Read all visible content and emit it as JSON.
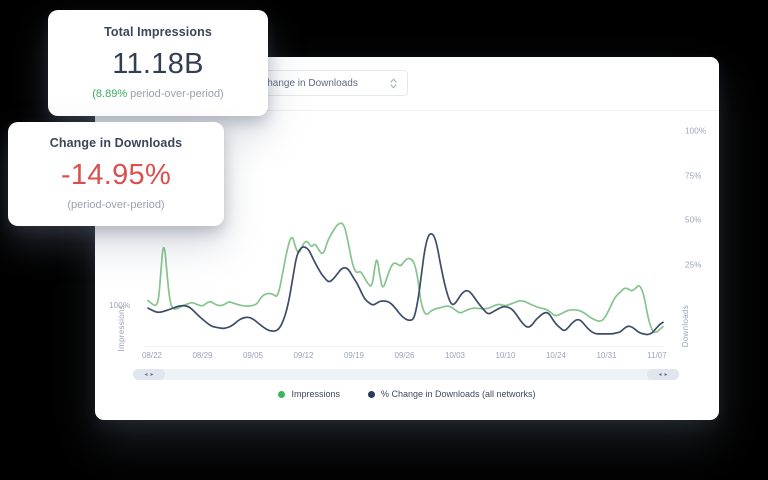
{
  "cards": {
    "impressions": {
      "title": "Total Impressions",
      "value": "11.18B",
      "delta": "(8.89%",
      "delta_rest": " period-over-period)"
    },
    "downloads": {
      "title": "Change in Downloads",
      "value": "-14.95%",
      "sub": "(period-over-period)"
    }
  },
  "panel": {
    "dropdown": {
      "value": "Change in Downloads"
    },
    "left_axis": {
      "title": "Impressions",
      "visible_tick": "100%"
    },
    "right_axis": {
      "title": "Downloads"
    },
    "scrollbar": {
      "left_arrow": "◂",
      "right_arrow": "▸"
    }
  },
  "chart_data": {
    "type": "line",
    "title": "",
    "grid": false,
    "legend_position": "bottom",
    "x_labels": [
      "08/22",
      "08/29",
      "09/05",
      "09/12",
      "09/19",
      "09/26",
      "10/03",
      "10/10",
      "10/24",
      "10/31",
      "11/07"
    ],
    "left_axis": {
      "label": "Impressions",
      "unit": "%",
      "ticks": [
        100
      ],
      "range_hint": [
        0,
        140
      ]
    },
    "right_axis": {
      "label": "Downloads",
      "unit": "%",
      "ticks": [
        100,
        75,
        50,
        25
      ],
      "range_hint": [
        -20,
        110
      ]
    },
    "series": [
      {
        "name": "Impressions",
        "axis": "left",
        "color": "#85c58d",
        "legend_dot_color": "#3cb563",
        "points": [
          [
            0,
            48
          ],
          [
            0.8,
            44
          ],
          [
            1.6,
            42
          ],
          [
            2.1,
            50
          ],
          [
            2.5,
            79
          ],
          [
            2.9,
            106
          ],
          [
            3.3,
            104
          ],
          [
            3.7,
            75
          ],
          [
            4.3,
            45
          ],
          [
            5,
            38
          ],
          [
            6,
            40
          ],
          [
            7,
            43
          ],
          [
            8,
            45
          ],
          [
            8.7,
            46
          ],
          [
            9.7,
            43
          ],
          [
            10.7,
            42
          ],
          [
            11.5,
            46
          ],
          [
            12.2,
            47
          ],
          [
            13,
            44
          ],
          [
            14,
            42
          ],
          [
            15,
            44
          ],
          [
            15.7,
            47
          ],
          [
            16.7,
            45
          ],
          [
            17.7,
            43
          ],
          [
            18.8,
            42
          ],
          [
            20,
            42
          ],
          [
            21.2,
            44
          ],
          [
            22.1,
            53
          ],
          [
            23.3,
            56
          ],
          [
            24.3,
            55
          ],
          [
            25.2,
            51
          ],
          [
            26.2,
            79
          ],
          [
            27.2,
            108
          ],
          [
            28,
            119
          ],
          [
            28.7,
            104
          ],
          [
            29.3,
            98
          ],
          [
            30.1,
            109
          ],
          [
            30.9,
            113
          ],
          [
            31.7,
            105
          ],
          [
            32.4,
            110
          ],
          [
            33.2,
            102
          ],
          [
            34,
            97
          ],
          [
            34.8,
            111
          ],
          [
            35.5,
            119
          ],
          [
            36.5,
            128
          ],
          [
            37.3,
            132
          ],
          [
            38.1,
            130
          ],
          [
            38.8,
            113
          ],
          [
            39.6,
            89
          ],
          [
            40.4,
            77
          ],
          [
            41.2,
            80
          ],
          [
            41.9,
            74
          ],
          [
            42.7,
            66
          ],
          [
            43.5,
            62
          ],
          [
            44.1,
            87
          ],
          [
            44.5,
            94
          ],
          [
            45,
            75
          ],
          [
            45.6,
            59
          ],
          [
            46.4,
            73
          ],
          [
            47.2,
            85
          ],
          [
            47.8,
            89
          ],
          [
            48.5,
            87
          ],
          [
            49.1,
            85
          ],
          [
            49.7,
            90
          ],
          [
            50.5,
            94
          ],
          [
            51.3,
            92
          ],
          [
            51.8,
            87
          ],
          [
            52.4,
            72
          ],
          [
            52.8,
            52
          ],
          [
            53.4,
            38
          ],
          [
            54,
            32
          ],
          [
            54.8,
            36
          ],
          [
            55.7,
            39
          ],
          [
            56.7,
            40
          ],
          [
            57.7,
            42
          ],
          [
            58.6,
            42
          ],
          [
            59.6,
            38
          ],
          [
            60.6,
            34
          ],
          [
            61.6,
            37
          ],
          [
            62.5,
            39
          ],
          [
            63.5,
            40
          ],
          [
            64.5,
            39
          ],
          [
            65.4,
            39
          ],
          [
            66.4,
            40
          ],
          [
            67.4,
            43
          ],
          [
            68.3,
            44
          ],
          [
            69.3,
            42
          ],
          [
            70.3,
            44
          ],
          [
            71.3,
            46
          ],
          [
            72.2,
            48
          ],
          [
            73.2,
            47
          ],
          [
            74.2,
            44
          ],
          [
            75.1,
            42
          ],
          [
            76.1,
            40
          ],
          [
            77.1,
            39
          ],
          [
            78.1,
            36
          ],
          [
            79,
            31
          ],
          [
            80,
            33
          ],
          [
            81,
            36
          ],
          [
            81.9,
            38
          ],
          [
            82.9,
            38
          ],
          [
            83.9,
            37
          ],
          [
            84.9,
            34
          ],
          [
            85.8,
            30
          ],
          [
            86.8,
            27
          ],
          [
            87.8,
            25
          ],
          [
            88.7,
            29
          ],
          [
            89.7,
            40
          ],
          [
            90.7,
            52
          ],
          [
            91.7,
            57
          ],
          [
            92.6,
            62
          ],
          [
            93.4,
            60
          ],
          [
            94,
            58
          ],
          [
            94.8,
            62
          ],
          [
            95.5,
            65
          ],
          [
            96.3,
            54
          ],
          [
            97.1,
            29
          ],
          [
            97.9,
            15
          ],
          [
            98.6,
            13
          ],
          [
            99.4,
            17
          ],
          [
            100,
            20
          ]
        ]
      },
      {
        "name": "% Change in Downloads (all networks)",
        "axis": "right",
        "color": "#3d4d69",
        "legend_dot_color": "#2c3a55",
        "points": [
          [
            0,
            0.5
          ],
          [
            1,
            -1
          ],
          [
            1.9,
            -2
          ],
          [
            2.9,
            -1.5
          ],
          [
            3.9,
            -0.5
          ],
          [
            4.9,
            0.5
          ],
          [
            5.8,
            1.5
          ],
          [
            6.8,
            2
          ],
          [
            7.8,
            1.5
          ],
          [
            8.7,
            -0.5
          ],
          [
            9.7,
            -3.5
          ],
          [
            10.7,
            -6
          ],
          [
            11.7,
            -8.5
          ],
          [
            12.6,
            -10
          ],
          [
            13.6,
            -10.5
          ],
          [
            14.6,
            -11
          ],
          [
            15.5,
            -10.5
          ],
          [
            16.5,
            -9
          ],
          [
            17.5,
            -6.5
          ],
          [
            18.4,
            -5
          ],
          [
            19.4,
            -4.5
          ],
          [
            20.4,
            -5.5
          ],
          [
            21.4,
            -8
          ],
          [
            22.3,
            -10
          ],
          [
            23.3,
            -12
          ],
          [
            24.3,
            -12.5
          ],
          [
            25.2,
            -12
          ],
          [
            26.2,
            -7.5
          ],
          [
            27.2,
            2
          ],
          [
            28.2,
            19
          ],
          [
            28.9,
            30.5
          ],
          [
            29.7,
            34.5
          ],
          [
            30.5,
            35
          ],
          [
            31.3,
            33
          ],
          [
            32,
            28.5
          ],
          [
            32.8,
            24
          ],
          [
            33.6,
            20
          ],
          [
            34.4,
            17
          ],
          [
            35.1,
            15
          ],
          [
            35.9,
            16.5
          ],
          [
            36.7,
            19.5
          ],
          [
            37.5,
            22.5
          ],
          [
            38.3,
            23.5
          ],
          [
            39,
            22
          ],
          [
            39.8,
            18
          ],
          [
            40.6,
            14.5
          ],
          [
            41.4,
            9.5
          ],
          [
            42.1,
            5.5
          ],
          [
            42.9,
            3.5
          ],
          [
            43.7,
            2
          ],
          [
            44.5,
            3.5
          ],
          [
            45.2,
            4.5
          ],
          [
            46,
            4.5
          ],
          [
            46.8,
            4
          ],
          [
            47.6,
            2
          ],
          [
            48.3,
            -0.5
          ],
          [
            49.1,
            -3.5
          ],
          [
            49.9,
            -5.5
          ],
          [
            50.7,
            -6.5
          ],
          [
            51.5,
            -6
          ],
          [
            52,
            -1.5
          ],
          [
            52.6,
            8
          ],
          [
            53.2,
            22
          ],
          [
            53.8,
            34.5
          ],
          [
            54.4,
            41
          ],
          [
            54.9,
            42.5
          ],
          [
            55.5,
            41.5
          ],
          [
            56.1,
            36
          ],
          [
            56.7,
            26.5
          ],
          [
            57.5,
            15
          ],
          [
            58.3,
            6.5
          ],
          [
            59,
            2
          ],
          [
            59.8,
            3.5
          ],
          [
            60.6,
            7.5
          ],
          [
            61.4,
            10
          ],
          [
            62.1,
            10.5
          ],
          [
            62.9,
            8.5
          ],
          [
            63.7,
            5
          ],
          [
            64.5,
            2
          ],
          [
            65.2,
            -0.5
          ],
          [
            66,
            -3
          ],
          [
            66.8,
            -2
          ],
          [
            67.6,
            -0.5
          ],
          [
            68.3,
            0.5
          ],
          [
            69.1,
            1.5
          ],
          [
            69.9,
            1
          ],
          [
            70.7,
            0
          ],
          [
            71.5,
            -3
          ],
          [
            72.2,
            -6
          ],
          [
            73,
            -9
          ],
          [
            73.8,
            -10.5
          ],
          [
            74.6,
            -9
          ],
          [
            75.3,
            -6
          ],
          [
            76.1,
            -4
          ],
          [
            76.9,
            -2
          ],
          [
            77.7,
            -2
          ],
          [
            78.4,
            -5
          ],
          [
            79.2,
            -8.5
          ],
          [
            80,
            -10.5
          ],
          [
            80.8,
            -12.5
          ],
          [
            81.6,
            -10.5
          ],
          [
            82.3,
            -8
          ],
          [
            83.1,
            -6
          ],
          [
            83.9,
            -6
          ],
          [
            84.7,
            -8.5
          ],
          [
            85.4,
            -11
          ],
          [
            86.2,
            -13
          ],
          [
            87,
            -14
          ],
          [
            87.8,
            -14
          ],
          [
            88.5,
            -14
          ],
          [
            89.3,
            -14
          ],
          [
            90.1,
            -14
          ],
          [
            90.9,
            -13.5
          ],
          [
            91.7,
            -13
          ],
          [
            92.4,
            -11
          ],
          [
            93.2,
            -9.5
          ],
          [
            94,
            -10
          ],
          [
            94.8,
            -12
          ],
          [
            95.5,
            -13.5
          ],
          [
            96.3,
            -14
          ],
          [
            97.1,
            -14.5
          ],
          [
            97.9,
            -13.5
          ],
          [
            98.6,
            -11
          ],
          [
            99.4,
            -8.5
          ],
          [
            100,
            -7.5
          ]
        ]
      }
    ]
  }
}
